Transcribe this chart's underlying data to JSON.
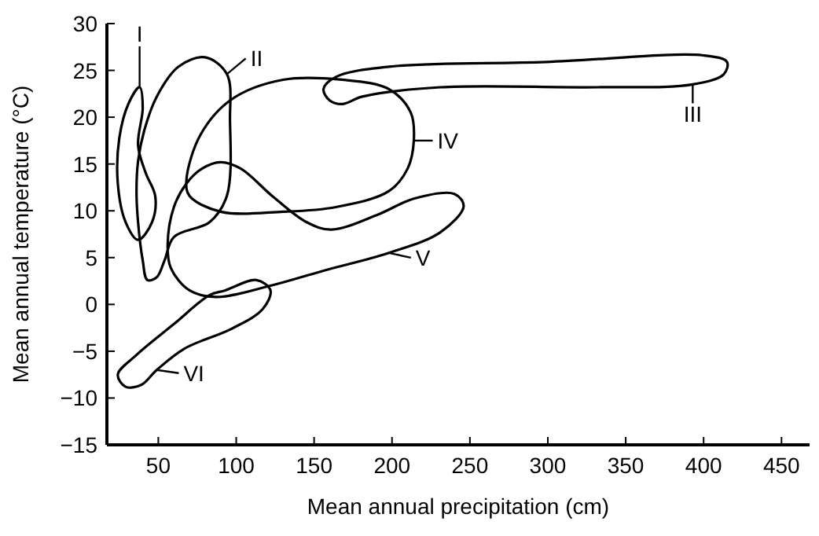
{
  "chart_data": {
    "type": "line",
    "xlabel": "Mean annual precipitation (cm)",
    "ylabel": "Mean annual temperature (°C)",
    "xlim": [
      17,
      468
    ],
    "ylim": [
      -15,
      30
    ],
    "xticks": [
      50,
      100,
      150,
      200,
      250,
      300,
      350,
      400,
      450
    ],
    "yticks": [
      -15,
      -10,
      -5,
      0,
      5,
      10,
      15,
      20,
      25,
      30
    ],
    "grid": false,
    "annotations": [
      "I",
      "II",
      "III",
      "IV",
      "V",
      "VI"
    ]
  }
}
